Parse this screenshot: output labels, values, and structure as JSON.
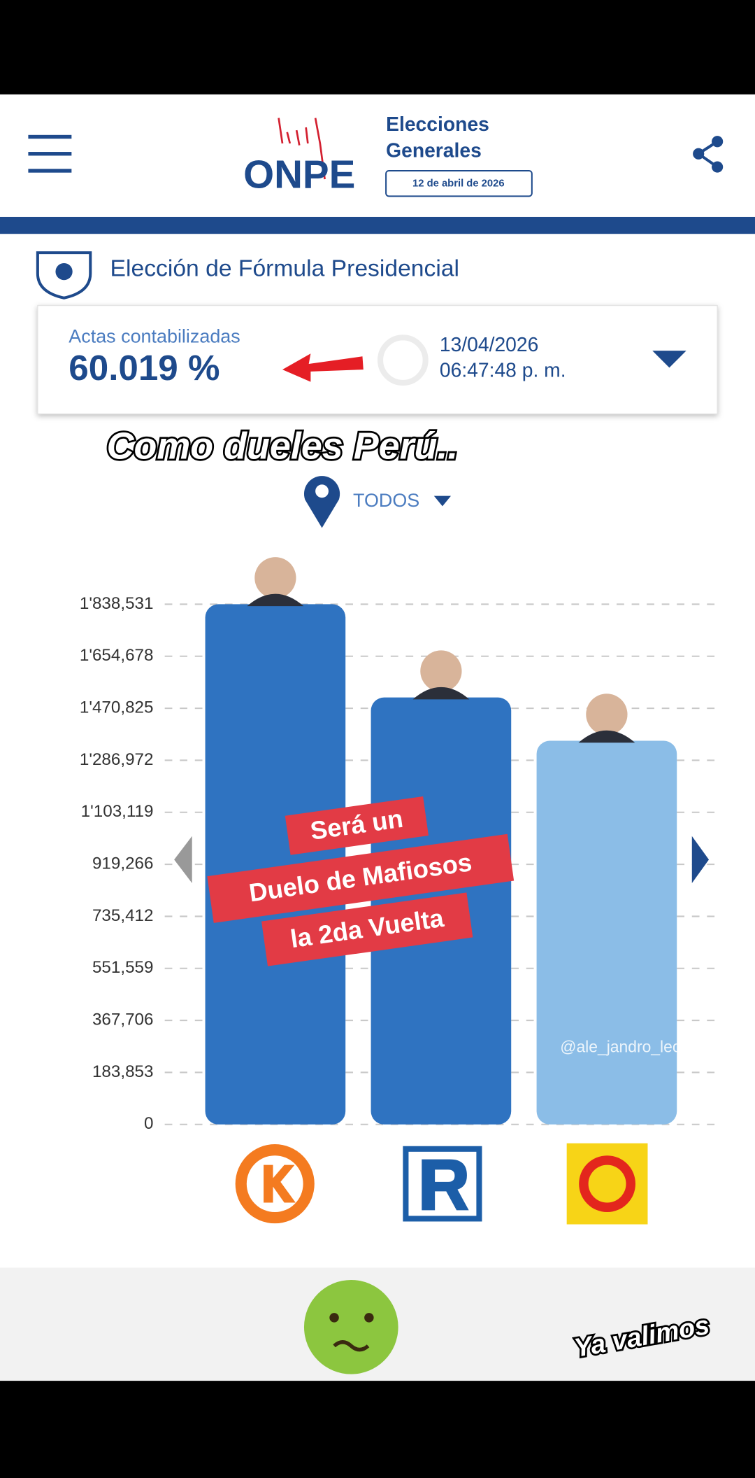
{
  "header": {
    "logo": "ONPE",
    "title_line1": "Elecciones",
    "title_line2": "Generales",
    "date": "12 de abril de 2026"
  },
  "section_title": "Elección de Fórmula Presidencial",
  "status": {
    "label": "Actas contabilizadas",
    "percent": "60.019 %",
    "date": "13/04/2026",
    "time": "06:47:48 p. m."
  },
  "caption": "Como dueles Perú..",
  "filter": "TODOS",
  "overlay": [
    "Será un",
    "Duelo de Mafiosos",
    "la 2da Vuelta"
  ],
  "watermark": "@ale_jandro_leon",
  "footer_caption": "Ya valimos",
  "chart_data": {
    "type": "bar",
    "categories": [
      null,
      null,
      null
    ],
    "series": [
      {
        "colors": [
          "#2f73c1",
          "#2f73c1",
          "#8bbde7"
        ],
        "values": [
          1838531,
          1509000,
          1356000
        ]
      }
    ],
    "ylim": [
      0,
      1838531
    ],
    "yticks": [
      0,
      {
        "value": 183853,
        "label": "183,853"
      },
      {
        "value": 367706,
        "label": "367,706"
      },
      {
        "value": 551559,
        "label": "551,559"
      },
      {
        "value": 735412,
        "label": "735,412"
      },
      {
        "value": 919266,
        "label": "919,266"
      },
      {
        "value": 1103119,
        "label": "1'103,119"
      },
      {
        "value": 1286972,
        "label": "1'286,972"
      },
      {
        "value": 1470825,
        "label": "1'470,825"
      },
      {
        "value": 1654678,
        "label": "1'654,678"
      },
      {
        "value": 1838531,
        "label": "1'838,531"
      }
    ],
    "grid": true
  }
}
